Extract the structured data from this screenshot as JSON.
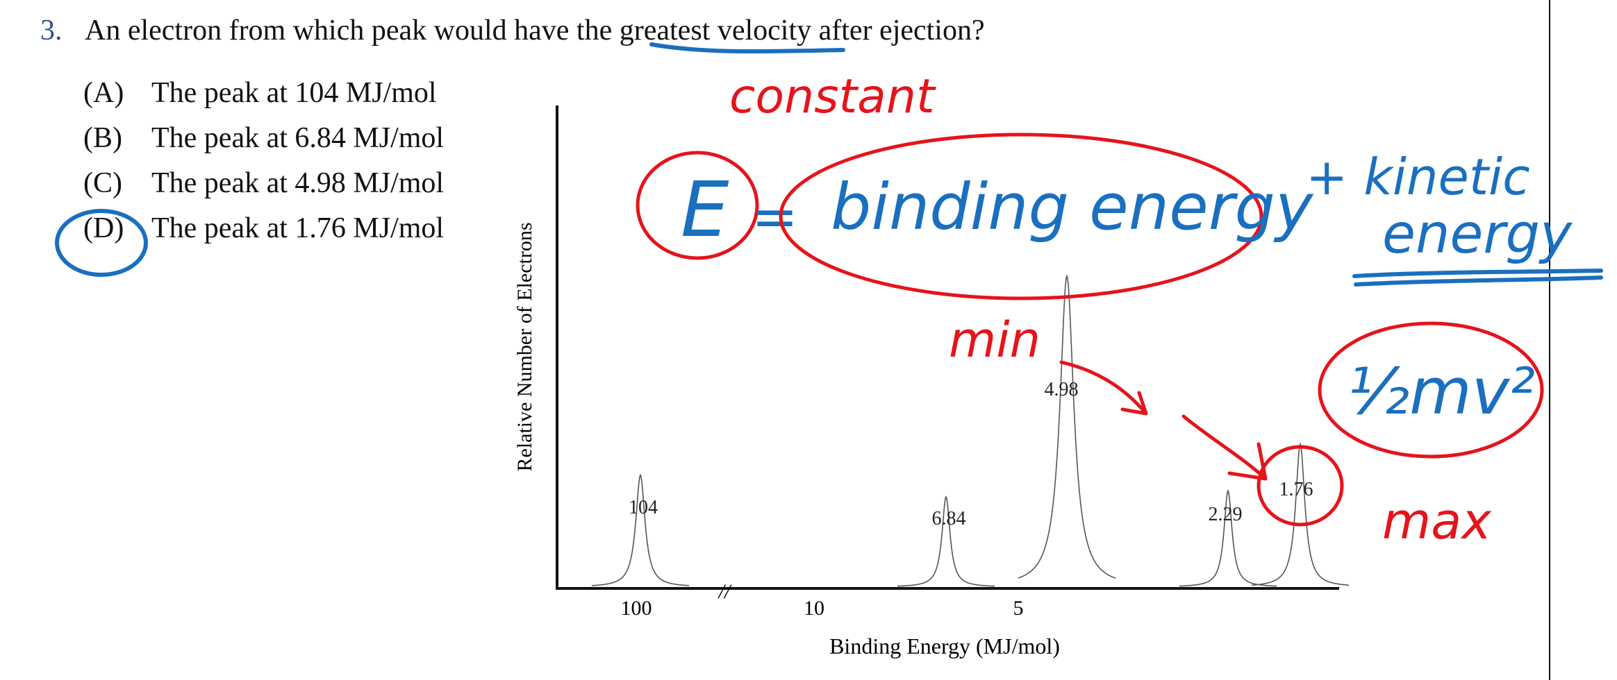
{
  "question": {
    "number": "3.",
    "text": "An electron from which peak would have the greatest velocity after ejection?",
    "choices": [
      {
        "letter": "(A)",
        "text": "The peak at 104 MJ/mol"
      },
      {
        "letter": "(B)",
        "text": "The peak at 6.84 MJ/mol"
      },
      {
        "letter": "(C)",
        "text": "The peak at 4.98 MJ/mol"
      },
      {
        "letter": "(D)",
        "text": "The peak at 1.76 MJ/mol"
      }
    ]
  },
  "chart_data": {
    "type": "line",
    "xlabel": "Binding Energy (MJ/mol)",
    "ylabel": "Relative Number of Electrons",
    "x_ticks": [
      "100",
      "10",
      "5"
    ],
    "axis_break": "//",
    "peaks": [
      {
        "label": "104",
        "binding_energy": 104,
        "relative_height": 0.36
      },
      {
        "label": "6.84",
        "binding_energy": 6.84,
        "relative_height": 0.29
      },
      {
        "label": "4.98",
        "binding_energy": 4.98,
        "relative_height": 1.0
      },
      {
        "label": "2.29",
        "binding_energy": 2.29,
        "relative_height": 0.31
      },
      {
        "label": "1.76",
        "binding_energy": 1.76,
        "relative_height": 0.46
      }
    ]
  },
  "annotations": {
    "constant": "constant",
    "equation_e": "E",
    "equation_eq": "=",
    "binding_energy": "binding energy",
    "plus_kinetic": "+ kinetic",
    "energy": "energy",
    "min": "min",
    "half_mv2": "½mv²",
    "max": "max",
    "colors": {
      "blue": "#1a6fbf",
      "red": "#e5141b"
    }
  }
}
